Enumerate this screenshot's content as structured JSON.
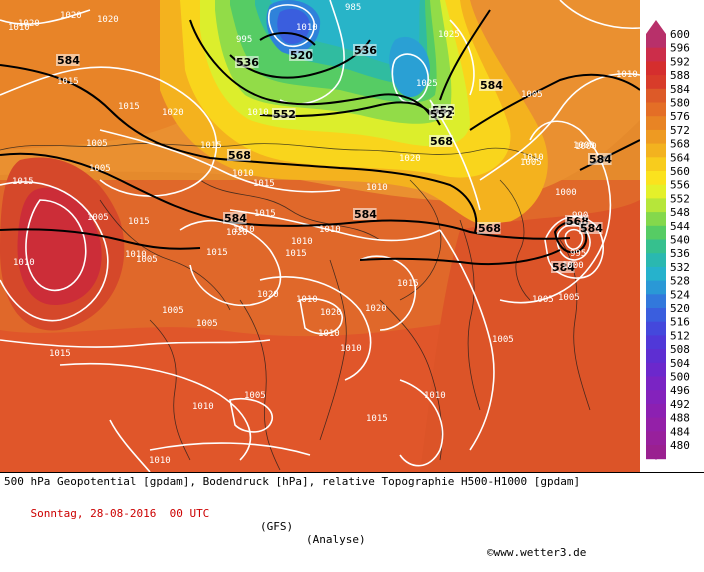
{
  "footer": {
    "title": "500 hPa Geopotential [gpdam], Bodendruck [hPa], relative Topographie H500-H1000 [gpdam]",
    "date": "Sonntag, 28-08-2016  00 UTC",
    "model": "(GFS)",
    "analysis": "(Analyse)",
    "credit": "©www.wetter3.de"
  },
  "legend": {
    "levels": [
      "600",
      "596",
      "592",
      "588",
      "584",
      "580",
      "576",
      "572",
      "568",
      "564",
      "560",
      "556",
      "552",
      "548",
      "544",
      "540",
      "536",
      "532",
      "528",
      "524",
      "520",
      "516",
      "512",
      "508",
      "504",
      "500",
      "496",
      "492",
      "488",
      "484",
      "480"
    ],
    "colors": [
      "#b8306a",
      "#cc2d4a",
      "#d52e2e",
      "#d83c2a",
      "#dd5a28",
      "#e46e26",
      "#e88424",
      "#ee9a22",
      "#f3b21f",
      "#f8cc1d",
      "#fbe21e",
      "#e4f02a",
      "#b6e63a",
      "#84d84c",
      "#56cc64",
      "#36c08e",
      "#2ab8b0",
      "#26b2cc",
      "#2a98d6",
      "#3278dc",
      "#3a5ede",
      "#4448dc",
      "#5038d8",
      "#5e2ed2",
      "#6c28cc",
      "#7a24c4",
      "#8422bc",
      "#8c20b2",
      "#9420a8",
      "#98209c",
      "#9a2090"
    ]
  },
  "map_labels": {
    "geopotential": [
      "584",
      "584",
      "584",
      "584",
      "584",
      "584",
      "520",
      "536",
      "536",
      "552",
      "552",
      "552",
      "568",
      "568",
      "568",
      "568",
      "584"
    ],
    "pressure": [
      "1020",
      "1020",
      "1020",
      "1025",
      "985",
      "995",
      "1015",
      "1015",
      "1020",
      "1010",
      "1005",
      "1000",
      "1015",
      "1015",
      "1025",
      "1020",
      "1010",
      "1010",
      "1005",
      "1005",
      "1005",
      "1010",
      "1015",
      "1010",
      "1015",
      "1010",
      "1015",
      "1015",
      "1020",
      "1010",
      "1010",
      "1015",
      "1005",
      "1010",
      "1005",
      "1015",
      "1020",
      "1020",
      "1015",
      "1020",
      "1010",
      "1005",
      "1010",
      "1010",
      "1015",
      "1010",
      "1005",
      "1005",
      "1010",
      "1010",
      "1005",
      "1010",
      "1005",
      "1000",
      "1000",
      "990",
      "995",
      "1000",
      "1010",
      "1010",
      "1005"
    ]
  }
}
